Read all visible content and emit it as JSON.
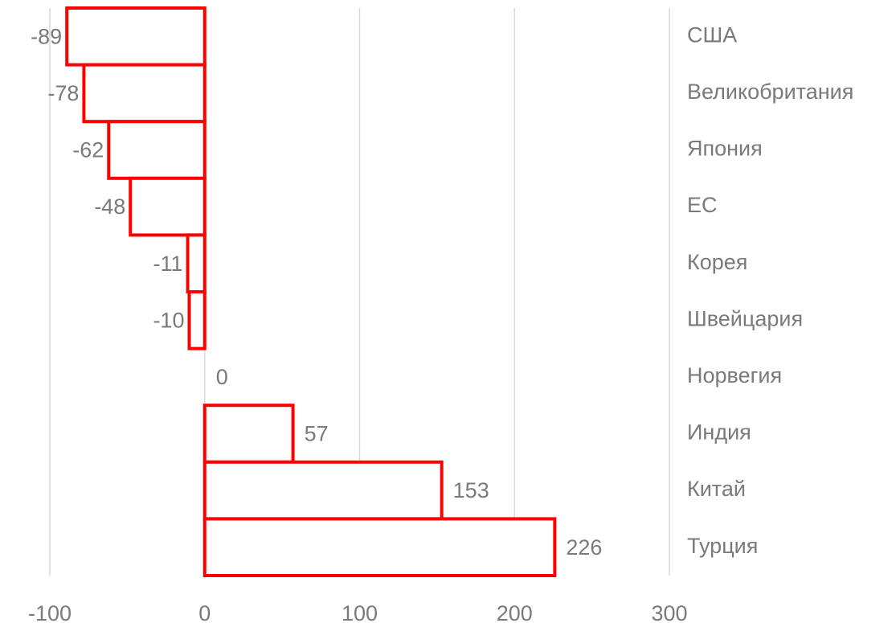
{
  "chart_data": {
    "type": "bar",
    "orientation": "horizontal",
    "categories": [
      "США",
      "Великобритания",
      "Япония",
      "ЕС",
      "Корея",
      "Швейцария",
      "Норвегия",
      "Индия",
      "Китай",
      "Турция"
    ],
    "values": [
      -89,
      -78,
      -62,
      -48,
      -11,
      -10,
      0,
      57,
      153,
      226
    ],
    "color": "#ff0000",
    "xlim": [
      -100,
      300
    ],
    "xticks": [
      -100,
      0,
      100,
      200,
      300
    ],
    "grid": true
  }
}
